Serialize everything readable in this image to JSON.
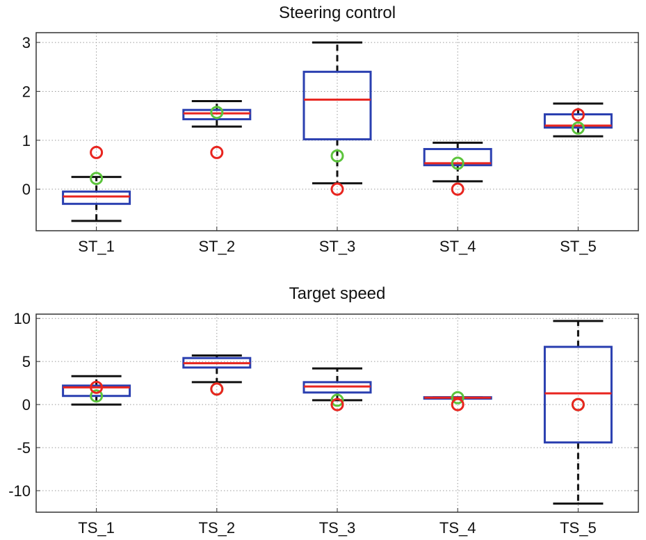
{
  "colors": {
    "box": "#2a3fb0",
    "median": "#e8251f",
    "whisker": "#111111",
    "marker_red": "#e8251f",
    "marker_green": "#5cc43c",
    "grid": "#9a9a9a",
    "axis": "#333333"
  },
  "chart_data": [
    {
      "type": "boxplot",
      "title": "Steering control",
      "xlabel": "",
      "ylabel": "",
      "ylim": [
        -0.85,
        3.2
      ],
      "yticks": [
        0,
        1,
        2,
        3
      ],
      "grid": true,
      "categories": [
        "ST_1",
        "ST_2",
        "ST_3",
        "ST_4",
        "ST_5"
      ],
      "boxes": [
        {
          "whisker_low": -0.65,
          "q1": -0.3,
          "median": -0.15,
          "q3": -0.05,
          "whisker_high": 0.25,
          "red_marker": 0.75,
          "green_marker": 0.22
        },
        {
          "whisker_low": 1.28,
          "q1": 1.43,
          "median": 1.55,
          "q3": 1.62,
          "whisker_high": 1.8,
          "red_marker": 0.75,
          "green_marker": 1.57
        },
        {
          "whisker_low": 0.12,
          "q1": 1.02,
          "median": 1.83,
          "q3": 2.4,
          "whisker_high": 3.0,
          "red_marker": 0.0,
          "green_marker": 0.68
        },
        {
          "whisker_low": 0.16,
          "q1": 0.49,
          "median": 0.53,
          "q3": 0.82,
          "whisker_high": 0.95,
          "red_marker": 0.0,
          "green_marker": 0.53
        },
        {
          "whisker_low": 1.08,
          "q1": 1.26,
          "median": 1.3,
          "q3": 1.53,
          "whisker_high": 1.75,
          "red_marker": 1.52,
          "green_marker": 1.25
        }
      ]
    },
    {
      "type": "boxplot",
      "title": "Target speed",
      "xlabel": "",
      "ylabel": "",
      "ylim": [
        -12.5,
        10.5
      ],
      "yticks": [
        -10,
        -5,
        0,
        5,
        10
      ],
      "grid": true,
      "categories": [
        "TS_1",
        "TS_2",
        "TS_3",
        "TS_4",
        "TS_5"
      ],
      "boxes": [
        {
          "whisker_low": 0.0,
          "q1": 1.0,
          "median": 2.0,
          "q3": 2.2,
          "whisker_high": 3.3,
          "red_marker": 2.0,
          "green_marker": 1.0
        },
        {
          "whisker_low": 2.6,
          "q1": 4.3,
          "median": 4.8,
          "q3": 5.4,
          "whisker_high": 5.7,
          "red_marker": 1.8,
          "green_marker": 1.8
        },
        {
          "whisker_low": 0.5,
          "q1": 1.4,
          "median": 2.1,
          "q3": 2.6,
          "whisker_high": 4.2,
          "red_marker": 0.0,
          "green_marker": 0.5
        },
        {
          "whisker_low": 0.75,
          "q1": 0.75,
          "median": 0.8,
          "q3": 0.85,
          "whisker_high": 0.85,
          "red_marker": 0.0,
          "green_marker": 0.8
        },
        {
          "whisker_low": -11.5,
          "q1": -4.4,
          "median": 1.3,
          "q3": 6.7,
          "whisker_high": 9.7,
          "red_marker": 0.0,
          "green_marker": 0.0
        }
      ]
    }
  ]
}
